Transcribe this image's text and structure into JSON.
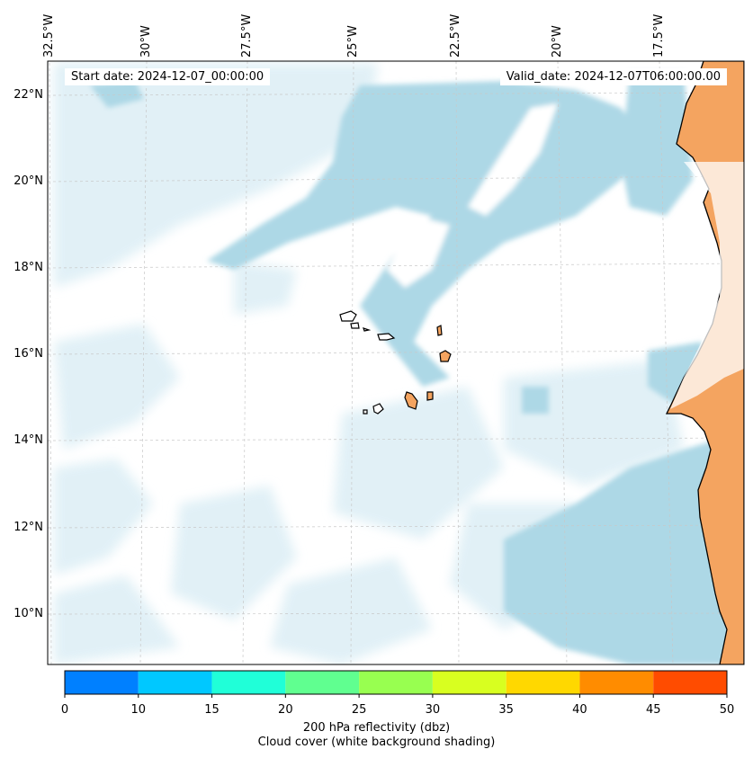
{
  "map": {
    "lon_labels": [
      "32.5°W",
      "30°W",
      "27.5°W",
      "25°W",
      "22.5°W",
      "20°W",
      "17.5°W"
    ],
    "lat_labels": [
      "22°N",
      "20°N",
      "18°N",
      "16°N",
      "14°N",
      "12°N",
      "10°N"
    ],
    "start_date": "Start date: 2024-12-07_00:00:00",
    "valid_date": "Valid_date: 2024-12-07T06:00:00.00",
    "cloud_color": "#add8e6",
    "land_color": "#f4a460"
  },
  "colorbar": {
    "ticks": [
      "0",
      "10",
      "15",
      "20",
      "25",
      "30",
      "35",
      "40",
      "45",
      "50"
    ],
    "colors": [
      "#0080ff",
      "#00c8ff",
      "#20ffd8",
      "#60ff90",
      "#98ff50",
      "#d8ff20",
      "#ffd800",
      "#ff8c00",
      "#ff4c00"
    ],
    "label_line1": "200 hPa reflectivity (dbz)",
    "label_line2": "Cloud cover (white background shading)"
  }
}
